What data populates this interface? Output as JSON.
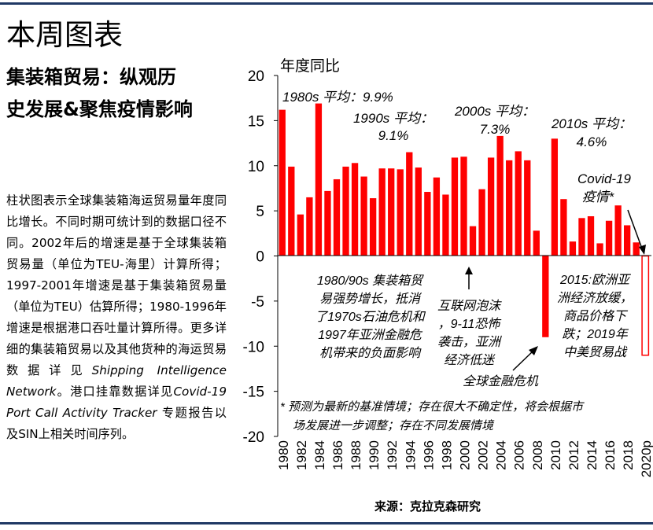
{
  "page": {
    "title": "本周图表",
    "subtitle_lines": [
      "集装箱贸易：纵观历",
      "史发展&聚焦疫情影响"
    ],
    "description_parts": [
      "柱状图表示全球集装箱海运贸易量年度同比增长。不同时期可统计到的数据口径不同。2002年后的增速是基于全球集装箱贸易量（单位为TEU-海里）计算所得；1997-2001年增速是基于集装箱贸易量（单位为TEU）估算所得；1980-1996年增速是根据港口吞吐量计算所得。更多详细的集装箱贸易以及其他货种的海运贸易数据详见",
      "Shipping Intelligence Network",
      "。港口挂靠数据详见",
      "Covid-19 Port Call Activity Tracker",
      " 专题报告以及SIN上相关时间序列。"
    ],
    "source": "来源：克拉克森研究"
  },
  "colors": {
    "bar": "#ff0000",
    "rule": "#1f3864"
  },
  "chart_data": {
    "type": "bar",
    "ylabel": "年度同比",
    "ylim": [
      -20,
      20
    ],
    "yticks": [
      20,
      15,
      10,
      5,
      0,
      -5,
      -10,
      -15,
      -20
    ],
    "categories": [
      "1980",
      "1981",
      "1982",
      "1983",
      "1984",
      "1985",
      "1986",
      "1987",
      "1988",
      "1989",
      "1990",
      "1991",
      "1992",
      "1993",
      "1994",
      "1995",
      "1996",
      "1997",
      "1998",
      "1999",
      "2000",
      "2001",
      "2002",
      "2003",
      "2004",
      "2005",
      "2006",
      "2007",
      "2008",
      "2009",
      "2010",
      "2011",
      "2012",
      "2013",
      "2014",
      "2015",
      "2016",
      "2017",
      "2018",
      "2019",
      "2020p"
    ],
    "xtick_labels": [
      "1980",
      "1982",
      "1984",
      "1986",
      "1988",
      "1990",
      "1992",
      "1994",
      "1996",
      "1998",
      "2000",
      "2002",
      "2004",
      "2006",
      "2008",
      "2010",
      "2012",
      "2014",
      "2016",
      "2018",
      "2020p"
    ],
    "values": [
      16.2,
      9.9,
      4.6,
      6.5,
      16.9,
      7.2,
      8.5,
      9.9,
      10.3,
      8.8,
      6.4,
      9.7,
      9.7,
      9.6,
      11.5,
      9.8,
      7.1,
      8.7,
      6.8,
      10.9,
      11.0,
      3.3,
      7.4,
      10.9,
      13.3,
      10.6,
      11.6,
      10.6,
      2.8,
      -9.0,
      13.0,
      6.3,
      1.6,
      4.2,
      4.4,
      1.4,
      3.9,
      5.6,
      3.4,
      1.5,
      -11.0
    ],
    "forecast_index": 40,
    "annotations": [
      {
        "lines": [
          "1980s 平均：9.9%"
        ]
      },
      {
        "lines": [
          "1990s 平均：",
          "9.1%"
        ]
      },
      {
        "lines": [
          "2000s 平均：",
          "7.3%"
        ]
      },
      {
        "lines": [
          "2010s 平均：",
          "4.6%"
        ]
      },
      {
        "lines": [
          "Covid-19",
          "疫情*"
        ]
      },
      {
        "lines": [
          "1980/90s 集装箱贸",
          "易强势增长，抵消",
          "了1970s石油危机和",
          "1997年亚洲金融危",
          "机带来的负面影响"
        ]
      },
      {
        "lines": [
          "互联网泡沫",
          "，9-11恐怖",
          "袭击，亚洲",
          "经济低迷"
        ]
      },
      {
        "lines": [
          "全球金融危机"
        ]
      },
      {
        "lines": [
          "2015:欧洲亚",
          "洲经济放缓，",
          "商品价格下",
          "跌；2019年",
          "中美贸易战"
        ]
      },
      {
        "lines": [
          "* 预测为最新的基准情境；存在很大不确定性，将会根据市",
          "场发展进一步调整；存在不同发展情境"
        ]
      }
    ]
  }
}
